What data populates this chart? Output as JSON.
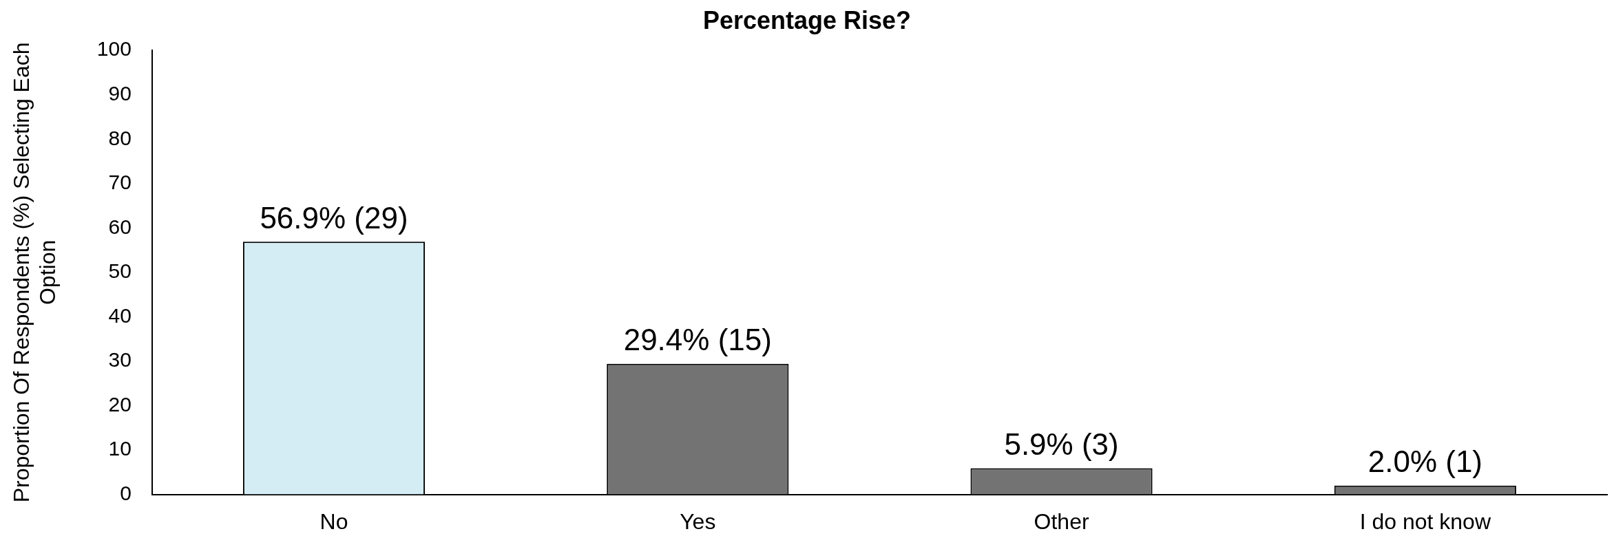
{
  "chart_data": {
    "type": "bar",
    "title": "Percentage Rise?",
    "ylabel": "Proportion Of Respondents (%) Selecting Each Option",
    "categories": [
      "No",
      "Yes",
      "Other",
      "I do not know"
    ],
    "values": [
      56.9,
      29.4,
      5.9,
      2.0
    ],
    "colors": [
      "#d4ecf3",
      "#737373",
      "#737373",
      "#737373"
    ],
    "value_labels": [
      "56.9% (29)",
      "29.4% (15)",
      "5.9% (3)",
      "2.0% (1)"
    ],
    "ylim": [
      0,
      100
    ],
    "yticks": [
      0,
      10,
      20,
      30,
      40,
      50,
      60,
      70,
      80,
      90,
      100
    ],
    "grid": false,
    "legend": false
  }
}
